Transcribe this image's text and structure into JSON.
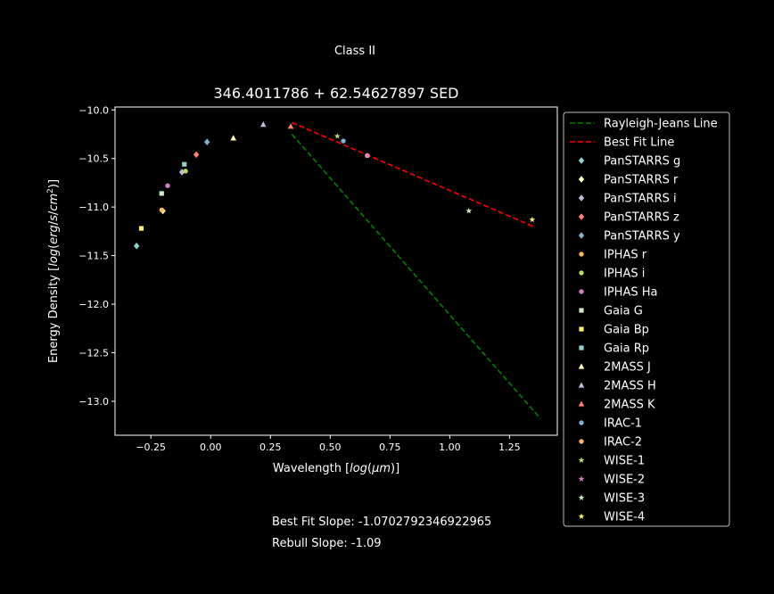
{
  "figure": {
    "suptitle": "Class II",
    "footer_slope": "Best Fit Slope: -1.0702792346922965",
    "footer_rebull": "Rebull Slope: -1.09"
  },
  "chart_data": {
    "type": "scatter",
    "title": "346.4011786 + 62.54627897 SED",
    "xlabel": "Wavelength [log(μm)]",
    "ylabel": "Energy Density [log(erg/s/cm²)]",
    "xlim": [
      -0.4,
      1.45
    ],
    "ylim": [
      -13.35,
      -9.97
    ],
    "xticks": [
      -0.25,
      0.0,
      0.25,
      0.5,
      0.75,
      1.0,
      1.25
    ],
    "xtick_labels": [
      "−0.25",
      "0.00",
      "0.25",
      "0.50",
      "0.75",
      "1.00",
      "1.25"
    ],
    "yticks": [
      -10.0,
      -10.5,
      -11.0,
      -11.5,
      -12.0,
      -12.5,
      -13.0
    ],
    "ytick_labels": [
      "−10.0",
      "−10.5",
      "−11.0",
      "−11.5",
      "−12.0",
      "−12.5",
      "−13.0"
    ],
    "grid": false,
    "legend_position": "outside-right",
    "lines": [
      {
        "name": "Rayleigh-Jeans Line",
        "color": "#008000",
        "dash": "dashed",
        "x": [
          0.34,
          1.38
        ],
        "y": [
          -10.25,
          -13.18
        ]
      },
      {
        "name": "Best Fit Line",
        "color": "#ff0000",
        "dash": "dashed",
        "x": [
          0.34,
          1.35
        ],
        "y": [
          -10.13,
          -11.2
        ]
      }
    ],
    "series": [
      {
        "name": "PanSTARRS g",
        "marker": "diamond",
        "color": "#8dd3c7",
        "x": [
          -0.31
        ],
        "y": [
          -11.4
        ]
      },
      {
        "name": "PanSTARRS r",
        "marker": "diamond",
        "color": "#ffffb3",
        "x": [
          -0.2
        ],
        "y": [
          -11.04
        ]
      },
      {
        "name": "PanSTARRS i",
        "marker": "diamond",
        "color": "#bebada",
        "x": [
          -0.12
        ],
        "y": [
          -10.64
        ]
      },
      {
        "name": "PanSTARRS z",
        "marker": "diamond",
        "color": "#fb8072",
        "x": [
          -0.06
        ],
        "y": [
          -10.46
        ]
      },
      {
        "name": "PanSTARRS y",
        "marker": "diamond",
        "color": "#80b1d3",
        "x": [
          -0.015
        ],
        "y": [
          -10.33
        ]
      },
      {
        "name": "IPHAS r",
        "marker": "circle",
        "color": "#fdb462",
        "x": [
          -0.205
        ],
        "y": [
          -11.03
        ]
      },
      {
        "name": "IPHAS i",
        "marker": "circle",
        "color": "#b3de69",
        "x": [
          -0.105
        ],
        "y": [
          -10.63
        ]
      },
      {
        "name": "IPHAS Ha",
        "marker": "circle",
        "color": "#d47fc8",
        "x": [
          -0.18
        ],
        "y": [
          -10.78
        ]
      },
      {
        "name": "Gaia G",
        "marker": "square",
        "color": "#ccebc5",
        "x": [
          -0.205
        ],
        "y": [
          -10.86
        ]
      },
      {
        "name": "Gaia Bp",
        "marker": "square",
        "color": "#ffed6f",
        "x": [
          -0.29
        ],
        "y": [
          -11.22
        ]
      },
      {
        "name": "Gaia Rp",
        "marker": "square",
        "color": "#8dd3c7",
        "x": [
          -0.11
        ],
        "y": [
          -10.56
        ]
      },
      {
        "name": "2MASS J",
        "marker": "triangle",
        "color": "#ffffb3",
        "x": [
          0.095
        ],
        "y": [
          -10.29
        ]
      },
      {
        "name": "2MASS H",
        "marker": "triangle",
        "color": "#bebada",
        "x": [
          0.22
        ],
        "y": [
          -10.15
        ]
      },
      {
        "name": "2MASS K",
        "marker": "triangle",
        "color": "#fb8072",
        "x": [
          0.335
        ],
        "y": [
          -10.17
        ]
      },
      {
        "name": "IRAC-1",
        "marker": "circle",
        "color": "#80b1d3",
        "x": [
          0.555
        ],
        "y": [
          -10.32
        ]
      },
      {
        "name": "IRAC-2",
        "marker": "circle",
        "color": "#fdb462",
        "x": [
          0.655
        ],
        "y": [
          -10.47
        ]
      },
      {
        "name": "WISE-1",
        "marker": "star",
        "color": "#b3de69",
        "x": [
          0.53
        ],
        "y": [
          -10.27
        ]
      },
      {
        "name": "WISE-2",
        "marker": "star",
        "color": "#d47fc8",
        "x": [
          0.655
        ],
        "y": [
          -10.47
        ]
      },
      {
        "name": "WISE-3",
        "marker": "star",
        "color": "#ccebc5",
        "x": [
          1.08
        ],
        "y": [
          -11.04
        ]
      },
      {
        "name": "WISE-4",
        "marker": "star",
        "color": "#ffed6f",
        "x": [
          1.345
        ],
        "y": [
          -11.13
        ]
      }
    ]
  }
}
